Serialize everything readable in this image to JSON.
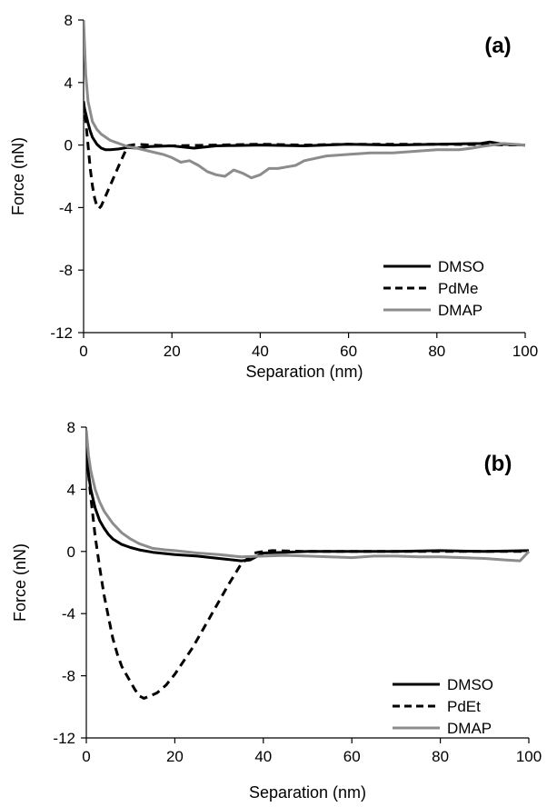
{
  "chart_data": [
    {
      "type": "line",
      "panel_label": "(a)",
      "xlabel": "Separation (nm)",
      "ylabel": "Force (nN)",
      "xlim": [
        0,
        100
      ],
      "ylim": [
        -12,
        8
      ],
      "xticks": [
        0,
        20,
        40,
        60,
        80,
        100
      ],
      "yticks": [
        8,
        4,
        0,
        -4,
        -8,
        -12
      ],
      "xtick_labels": [
        "0",
        "20",
        "40",
        "60",
        "80",
        "100"
      ],
      "ytick_labels": [
        "8",
        "4",
        "0",
        "-4",
        "-8",
        "-12"
      ],
      "grid": false,
      "legend_position": "bottom-right",
      "series": [
        {
          "name": "DMSO",
          "color": "#000000",
          "dash": "solid",
          "x": [
            0,
            0.5,
            1,
            1.5,
            2,
            3,
            4,
            5,
            6,
            8,
            10,
            12,
            15,
            20,
            25,
            30,
            40,
            50,
            60,
            70,
            80,
            90,
            92,
            95,
            100
          ],
          "y": [
            2.6,
            2.0,
            1.4,
            0.9,
            0.5,
            0.05,
            -0.2,
            -0.3,
            -0.3,
            -0.25,
            -0.15,
            -0.2,
            -0.1,
            -0.05,
            -0.2,
            -0.05,
            0,
            -0.05,
            0.05,
            0,
            0.05,
            0.1,
            0.2,
            0.05,
            0
          ]
        },
        {
          "name": "PdMe",
          "color": "#000000",
          "dash": "dashed",
          "x": [
            0,
            0.5,
            1,
            1.5,
            2,
            2.5,
            3,
            3.5,
            4,
            6,
            8,
            10,
            12,
            15,
            20,
            30,
            40,
            50,
            60,
            80,
            100
          ],
          "y": [
            2.8,
            1.5,
            0,
            -1.5,
            -2.6,
            -3.4,
            -3.9,
            -4.05,
            -3.9,
            -2.6,
            -1.3,
            -0.05,
            0.05,
            0,
            -0.05,
            0,
            0.05,
            0,
            0.05,
            0.05,
            0
          ]
        },
        {
          "name": "DMAP",
          "color": "#8c8c8c",
          "dash": "solid",
          "x": [
            0,
            0.5,
            1,
            2,
            3,
            4,
            5,
            6,
            8,
            10,
            12,
            15,
            18,
            20,
            22,
            24,
            26,
            28,
            30,
            32,
            34,
            36,
            38,
            40,
            42,
            44,
            46,
            48,
            50,
            55,
            60,
            65,
            70,
            75,
            80,
            85,
            88,
            90,
            95,
            100
          ],
          "y": [
            8,
            4.5,
            2.8,
            1.5,
            1.0,
            0.7,
            0.5,
            0.3,
            0.1,
            -0.1,
            -0.2,
            -0.4,
            -0.6,
            -0.8,
            -1.1,
            -1.0,
            -1.3,
            -1.7,
            -1.9,
            -2.0,
            -1.6,
            -1.8,
            -2.1,
            -1.9,
            -1.5,
            -1.5,
            -1.4,
            -1.3,
            -1.0,
            -0.7,
            -0.6,
            -0.5,
            -0.5,
            -0.4,
            -0.3,
            -0.3,
            -0.2,
            -0.1,
            0.1,
            0
          ]
        }
      ]
    },
    {
      "type": "line",
      "panel_label": "(b)",
      "xlabel": "Separation (nm)",
      "ylabel": "Force (nN)",
      "xlim": [
        0,
        100
      ],
      "ylim": [
        -12,
        8
      ],
      "xticks": [
        0,
        20,
        40,
        60,
        80,
        100
      ],
      "yticks": [
        8,
        4,
        0,
        -4,
        -8,
        -12
      ],
      "xtick_labels": [
        "0",
        "20",
        "40",
        "60",
        "80",
        "100"
      ],
      "ytick_labels": [
        "8",
        "4",
        "0",
        "-4",
        "-8",
        "-12"
      ],
      "grid": false,
      "legend_position": "bottom-right",
      "series": [
        {
          "name": "DMSO",
          "color": "#000000",
          "dash": "solid",
          "x": [
            0,
            0.5,
            1,
            2,
            3,
            4,
            5,
            6,
            8,
            10,
            12,
            15,
            20,
            25,
            30,
            35,
            37,
            40,
            45,
            50,
            60,
            70,
            80,
            90,
            100
          ],
          "y": [
            6.5,
            5.0,
            4.0,
            2.8,
            2.0,
            1.5,
            1.1,
            0.8,
            0.45,
            0.25,
            0.1,
            -0.05,
            -0.2,
            -0.3,
            -0.45,
            -0.6,
            -0.55,
            -0.1,
            -0.05,
            0,
            0,
            0,
            0.05,
            0,
            0.05
          ]
        },
        {
          "name": "PdEt",
          "color": "#000000",
          "dash": "dashed",
          "x": [
            0,
            0.5,
            1,
            2,
            3,
            4,
            5,
            6,
            7,
            8,
            9,
            10,
            11,
            12,
            13,
            14,
            16,
            18,
            20,
            24,
            28,
            32,
            35,
            38,
            40,
            42,
            50,
            60,
            70,
            80,
            90,
            100
          ],
          "y": [
            6.8,
            5.0,
            3.5,
            1.0,
            -1.0,
            -2.8,
            -4.2,
            -5.6,
            -6.6,
            -7.4,
            -7.9,
            -8.4,
            -8.9,
            -9.3,
            -9.45,
            -9.35,
            -9.1,
            -8.6,
            -7.9,
            -6.2,
            -4.2,
            -2.2,
            -0.8,
            -0.1,
            0,
            0.05,
            0,
            0,
            0,
            0,
            0,
            0
          ]
        },
        {
          "name": "DMAP",
          "color": "#8c8c8c",
          "dash": "solid",
          "x": [
            0,
            0.5,
            1,
            2,
            3,
            4,
            5,
            6,
            8,
            10,
            12,
            15,
            18,
            20,
            25,
            30,
            35,
            40,
            45,
            50,
            55,
            60,
            65,
            70,
            75,
            80,
            85,
            90,
            95,
            98,
            100
          ],
          "y": [
            7.8,
            6.2,
            5.2,
            4.0,
            3.2,
            2.6,
            2.2,
            1.8,
            1.2,
            0.8,
            0.5,
            0.2,
            0.1,
            0.05,
            -0.1,
            -0.2,
            -0.35,
            -0.3,
            -0.25,
            -0.3,
            -0.35,
            -0.4,
            -0.3,
            -0.3,
            -0.35,
            -0.35,
            -0.4,
            -0.45,
            -0.55,
            -0.6,
            0
          ]
        }
      ]
    }
  ]
}
